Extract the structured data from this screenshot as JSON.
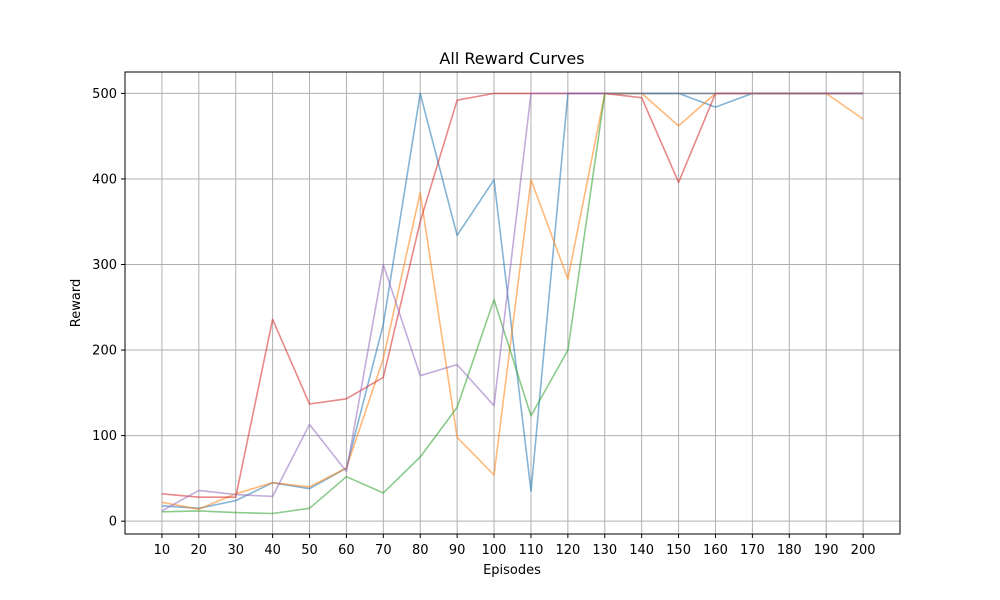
{
  "chart_data": {
    "type": "line",
    "title": "All Reward Curves",
    "xlabel": "Episodes",
    "ylabel": "Reward",
    "x": [
      10,
      20,
      30,
      40,
      50,
      60,
      70,
      80,
      90,
      100,
      110,
      120,
      130,
      140,
      150,
      160,
      170,
      180,
      190,
      200
    ],
    "xlim": [
      0,
      210
    ],
    "ylim": [
      -15,
      525
    ],
    "yticks": [
      0,
      100,
      200,
      300,
      400,
      500
    ],
    "grid": true,
    "series": [
      {
        "color": "#1f77b4",
        "values": [
          18,
          15,
          24,
          45,
          38,
          62,
          230,
          500,
          334,
          399,
          35,
          500,
          500,
          500,
          500,
          484,
          500,
          500,
          500,
          500
        ]
      },
      {
        "color": "#ff7f0e",
        "values": [
          22,
          14,
          32,
          45,
          40,
          62,
          190,
          384,
          98,
          54,
          399,
          283,
          500,
          500,
          462,
          500,
          500,
          500,
          500,
          470
        ]
      },
      {
        "color": "#2ca02c",
        "values": [
          11,
          12,
          10,
          9,
          15,
          52,
          33,
          75,
          133,
          259,
          123,
          200,
          500,
          500,
          500,
          500,
          500,
          500,
          500,
          500
        ]
      },
      {
        "color": "#d62728",
        "values": [
          32,
          28,
          28,
          236,
          137,
          143,
          168,
          350,
          492,
          500,
          500,
          500,
          500,
          495,
          396,
          500,
          500,
          500,
          500,
          500
        ]
      },
      {
        "color": "#9467bd",
        "values": [
          12,
          36,
          31,
          29,
          113,
          58,
          300,
          170,
          183,
          135,
          500,
          500,
          500,
          500,
          500,
          500,
          500,
          500,
          500,
          500
        ]
      }
    ]
  }
}
